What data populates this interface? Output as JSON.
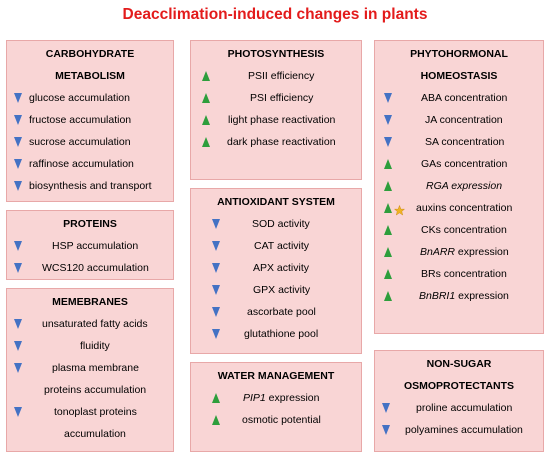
{
  "title": "Deacclimation-induced changes in plants",
  "colors": {
    "title": "#e31b1b",
    "box_bg": "#f9d5d5",
    "box_border": "#e8a8a8",
    "down_arrow": "#4472c4",
    "up_arrow": "#2e9e3c",
    "star": "#f0b323"
  },
  "boxes": {
    "carbohydrate": {
      "header": [
        "CARBOHYDRATE",
        "METABOLISM"
      ],
      "items": [
        {
          "dir": "down",
          "text": "glucose accumulation"
        },
        {
          "dir": "down",
          "text": "fructose accumulation"
        },
        {
          "dir": "down",
          "text": "sucrose accumulation"
        },
        {
          "dir": "down",
          "text": "raffinose accumulation"
        },
        {
          "dir": "down",
          "text": "biosynthesis and transport"
        }
      ]
    },
    "proteins": {
      "header": [
        "PROTEINS"
      ],
      "items": [
        {
          "dir": "down",
          "text": "HSP accumulation"
        },
        {
          "dir": "down",
          "text": "WCS120 accumulation"
        }
      ]
    },
    "membranes": {
      "header": [
        "MEMEBRANES"
      ],
      "items": [
        {
          "dir": "down",
          "text": "unsaturated fatty acids"
        },
        {
          "dir": "down",
          "text": "fluidity"
        },
        {
          "dir": "down",
          "text": "plasma membrane"
        },
        {
          "dir": "none",
          "text": "proteins accumulation"
        },
        {
          "dir": "down",
          "text": "tonoplast proteins"
        },
        {
          "dir": "none",
          "text": "accumulation"
        }
      ]
    },
    "photosynthesis": {
      "header": [
        "PHOTOSYNTHESIS"
      ],
      "items": [
        {
          "dir": "up",
          "text": "PSII efficiency"
        },
        {
          "dir": "up",
          "text": "PSI efficiency"
        },
        {
          "dir": "up",
          "text": "light phase reactivation"
        },
        {
          "dir": "up",
          "text": "dark phase reactivation"
        }
      ]
    },
    "antioxidant": {
      "header": [
        "ANTIOXIDANT SYSTEM"
      ],
      "items": [
        {
          "dir": "down",
          "text": "SOD activity"
        },
        {
          "dir": "down",
          "text": "CAT activity"
        },
        {
          "dir": "down",
          "text": "APX activity"
        },
        {
          "dir": "down",
          "text": "GPX activity"
        },
        {
          "dir": "down",
          "text": "ascorbate pool"
        },
        {
          "dir": "down",
          "text": "glutathione pool"
        }
      ]
    },
    "water": {
      "header": [
        "WATER MANAGEMENT"
      ],
      "items": [
        {
          "dir": "up",
          "text": "PIP1",
          "italic": true,
          "suffix": " expression"
        },
        {
          "dir": "up",
          "text": "osmotic potential"
        }
      ]
    },
    "phytohormonal": {
      "header": [
        "PHYTOHORMONAL",
        "HOMEOSTASIS"
      ],
      "items": [
        {
          "dir": "down",
          "text": "ABA concentration"
        },
        {
          "dir": "down",
          "text": "JA concentration"
        },
        {
          "dir": "down",
          "text": "SA concentration"
        },
        {
          "dir": "up",
          "text": "GAs concentration"
        },
        {
          "dir": "up",
          "text": "RGA expression",
          "italic": true
        },
        {
          "dir": "up",
          "star": true,
          "text": "auxins concentration"
        },
        {
          "dir": "up",
          "text": "CKs concentration"
        },
        {
          "dir": "up",
          "text": "BnARR",
          "italic": true,
          "suffix": " expression"
        },
        {
          "dir": "up",
          "text": "BRs concentration"
        },
        {
          "dir": "up",
          "text": "BnBRI1",
          "italic": true,
          "suffix": " expression"
        }
      ]
    },
    "osmoprotectants": {
      "header": [
        "NON-SUGAR",
        "OSMOPROTECTANTS"
      ],
      "items": [
        {
          "dir": "down",
          "text": "proline accumulation"
        },
        {
          "dir": "down",
          "text": "polyamines accumulation"
        }
      ]
    }
  }
}
